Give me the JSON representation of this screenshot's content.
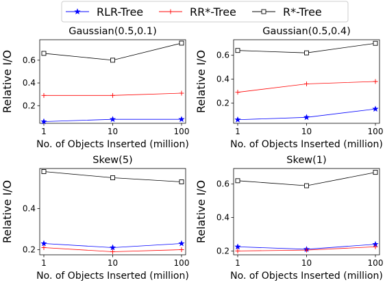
{
  "legend": {
    "placement": "top-center",
    "entries": [
      {
        "label": "RLR-Tree",
        "color": "#0000ff",
        "marker": "star"
      },
      {
        "label": "RR*-Tree",
        "color": "#ff0000",
        "marker": "plus"
      },
      {
        "label": "R*-Tree",
        "color": "#000000",
        "marker": "open-square"
      }
    ]
  },
  "chart_data": [
    {
      "type": "line",
      "title": "Gaussian(0.5,0.1)",
      "xlabel": "No. of Objects Inserted (million)",
      "ylabel": "Relative I/O",
      "x_scale": "log",
      "categories": [
        "1",
        "10",
        "100"
      ],
      "ylim": [
        0.045,
        0.78
      ],
      "yticks": [
        0.2,
        0.4,
        0.6
      ],
      "ytick_labels": [
        "0.2",
        "0.4",
        "0.6"
      ],
      "grid": false,
      "series": [
        {
          "name": "RLR-Tree",
          "values": [
            0.06,
            0.08,
            0.08
          ]
        },
        {
          "name": "RR*-Tree",
          "values": [
            0.29,
            0.29,
            0.31
          ]
        },
        {
          "name": "R*-Tree",
          "values": [
            0.66,
            0.6,
            0.75
          ]
        }
      ]
    },
    {
      "type": "line",
      "title": "Gaussian(0.5,0.4)",
      "xlabel": "No. of Objects Inserted (million)",
      "ylabel": "Relative I/O",
      "x_scale": "log",
      "categories": [
        "1",
        "10",
        "100"
      ],
      "ylim": [
        0.03,
        0.73
      ],
      "yticks": [
        0.2,
        0.4,
        0.6
      ],
      "ytick_labels": [
        "0.2",
        "0.4",
        "0.6"
      ],
      "grid": false,
      "series": [
        {
          "name": "RLR-Tree",
          "values": [
            0.06,
            0.08,
            0.15
          ]
        },
        {
          "name": "RR*-Tree",
          "values": [
            0.29,
            0.36,
            0.38
          ]
        },
        {
          "name": "R*-Tree",
          "values": [
            0.64,
            0.62,
            0.7
          ]
        }
      ]
    },
    {
      "type": "line",
      "title": "Skew(5)",
      "xlabel": "No. of Objects Inserted (million)",
      "ylabel": "Relative I/O",
      "x_scale": "log",
      "categories": [
        "1",
        "10",
        "100"
      ],
      "ylim": [
        0.175,
        0.595
      ],
      "yticks": [
        0.2,
        0.4
      ],
      "ytick_labels": [
        "0.2",
        "0.4"
      ],
      "grid": false,
      "series": [
        {
          "name": "RLR-Tree",
          "values": [
            0.23,
            0.21,
            0.23
          ]
        },
        {
          "name": "RR*-Tree",
          "values": [
            0.21,
            0.19,
            0.2
          ]
        },
        {
          "name": "R*-Tree",
          "values": [
            0.58,
            0.55,
            0.53
          ]
        }
      ]
    },
    {
      "type": "line",
      "title": "Skew(1)",
      "xlabel": "No. of Objects Inserted (million)",
      "ylabel": "Relative I/O",
      "x_scale": "log",
      "categories": [
        "1",
        "10",
        "100"
      ],
      "ylim": [
        0.177,
        0.693
      ],
      "yticks": [
        0.2,
        0.4,
        0.6
      ],
      "ytick_labels": [
        "0.2",
        "0.4",
        "0.6"
      ],
      "grid": false,
      "series": [
        {
          "name": "RLR-Tree",
          "values": [
            0.225,
            0.21,
            0.24
          ]
        },
        {
          "name": "RR*-Tree",
          "values": [
            0.2,
            0.205,
            0.225
          ]
        },
        {
          "name": "R*-Tree",
          "values": [
            0.62,
            0.59,
            0.67
          ]
        }
      ]
    }
  ]
}
